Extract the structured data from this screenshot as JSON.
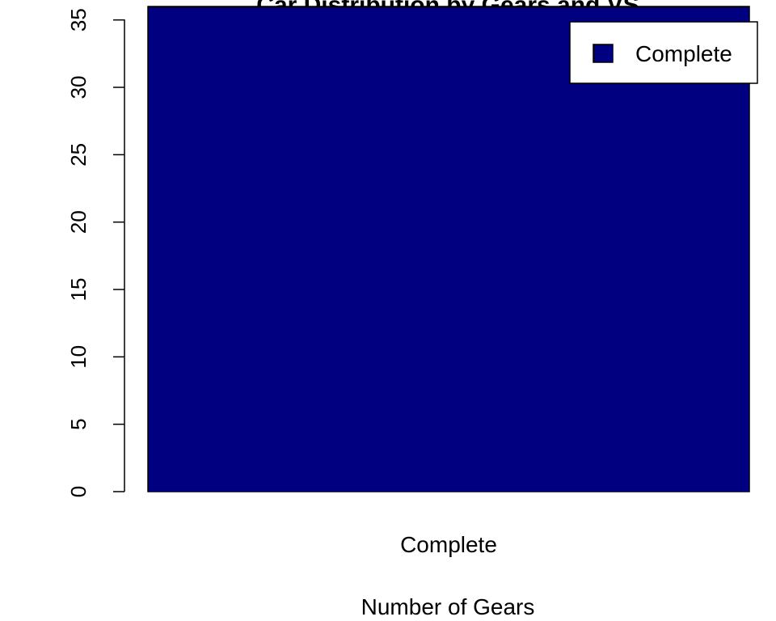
{
  "chart_data": {
    "type": "bar",
    "title": "Car Distribution by Gears and VS",
    "xlabel": "Number of Gears",
    "ylabel": "",
    "categories": [
      "Complete"
    ],
    "series": [
      {
        "name": "Complete",
        "values": [
          36
        ],
        "color": "#000080"
      }
    ],
    "ylim": [
      0,
      36
    ],
    "yticks": [
      0,
      5,
      10,
      15,
      20,
      25,
      30,
      35
    ],
    "grid": false,
    "legend": {
      "position": "top-right",
      "entries": [
        "Complete"
      ]
    }
  }
}
